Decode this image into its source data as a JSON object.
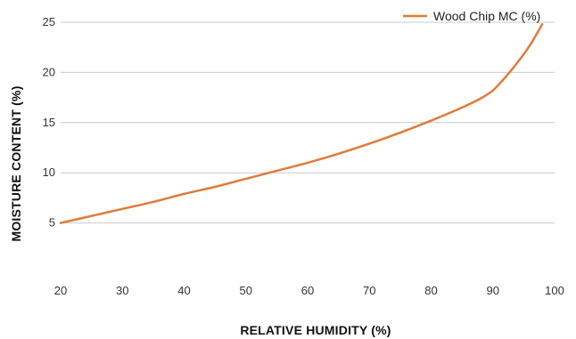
{
  "chart_data": {
    "type": "line",
    "title": "",
    "xlabel": "RELATIVE HUMIDITY (%)",
    "ylabel": "MOISTURE CONTENT (%)",
    "xlim": [
      20,
      100
    ],
    "ylim": [
      0,
      25
    ],
    "xticks": [
      20,
      30,
      40,
      50,
      60,
      70,
      80,
      90,
      100
    ],
    "yticks": [
      5,
      10,
      15,
      20,
      25
    ],
    "grid": "horizontal",
    "legend_position": "top-right",
    "colors": {
      "series": "#e07b39",
      "grid": "#cccccc"
    },
    "series": [
      {
        "name": "Wood Chip MC (%)",
        "x": [
          20,
          25,
          30,
          35,
          40,
          45,
          50,
          55,
          60,
          65,
          70,
          75,
          80,
          85,
          88,
          90,
          92,
          94,
          96,
          98
        ],
        "y": [
          5.0,
          5.7,
          6.4,
          7.1,
          7.9,
          8.6,
          9.4,
          10.2,
          11.0,
          11.9,
          12.9,
          14.0,
          15.2,
          16.5,
          17.4,
          18.2,
          19.5,
          21.0,
          22.7,
          24.8
        ]
      }
    ]
  }
}
